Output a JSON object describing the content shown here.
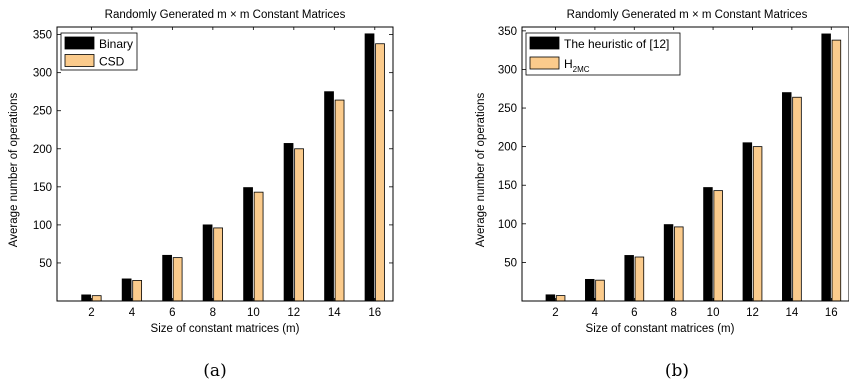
{
  "chart_data": [
    {
      "type": "bar",
      "title": "Randomly Generated m × m Constant Matrices",
      "xlabel": "Size of constant matrices (m)",
      "ylabel": "Average number of operations",
      "categories": [
        "2",
        "4",
        "6",
        "8",
        "10",
        "12",
        "14",
        "16"
      ],
      "ylim": [
        0,
        360
      ],
      "yticks": [
        "50",
        "100",
        "150",
        "200",
        "250",
        "300",
        "350"
      ],
      "legend_position": "top-left",
      "series": [
        {
          "name": "Binary",
          "color": "#000000",
          "values": [
            8,
            29,
            60,
            100,
            149,
            207,
            275,
            351
          ]
        },
        {
          "name": "CSD",
          "color": "#FBCB8C",
          "values": [
            7,
            27,
            57,
            96,
            143,
            200,
            264,
            338
          ]
        }
      ],
      "caption": "(a)"
    },
    {
      "type": "bar",
      "title": "Randomly Generated m × m Constant Matrices",
      "xlabel": "Size of constant matrices (m)",
      "ylabel": "Average number of operations",
      "categories": [
        "2",
        "4",
        "6",
        "8",
        "10",
        "12",
        "14",
        "16"
      ],
      "ylim": [
        0,
        355
      ],
      "yticks": [
        "50",
        "100",
        "150",
        "200",
        "250",
        "300",
        "350"
      ],
      "legend_position": "top-left",
      "series": [
        {
          "name": "The heuristic of [12]",
          "color": "#000000",
          "values": [
            8,
            28,
            59,
            99,
            147,
            205,
            270,
            346
          ]
        },
        {
          "name": "H",
          "name_sub": "2MC",
          "color": "#FBCB8C",
          "values": [
            7,
            27,
            57,
            96,
            143,
            200,
            264,
            338
          ]
        }
      ],
      "caption": "(b)"
    }
  ]
}
